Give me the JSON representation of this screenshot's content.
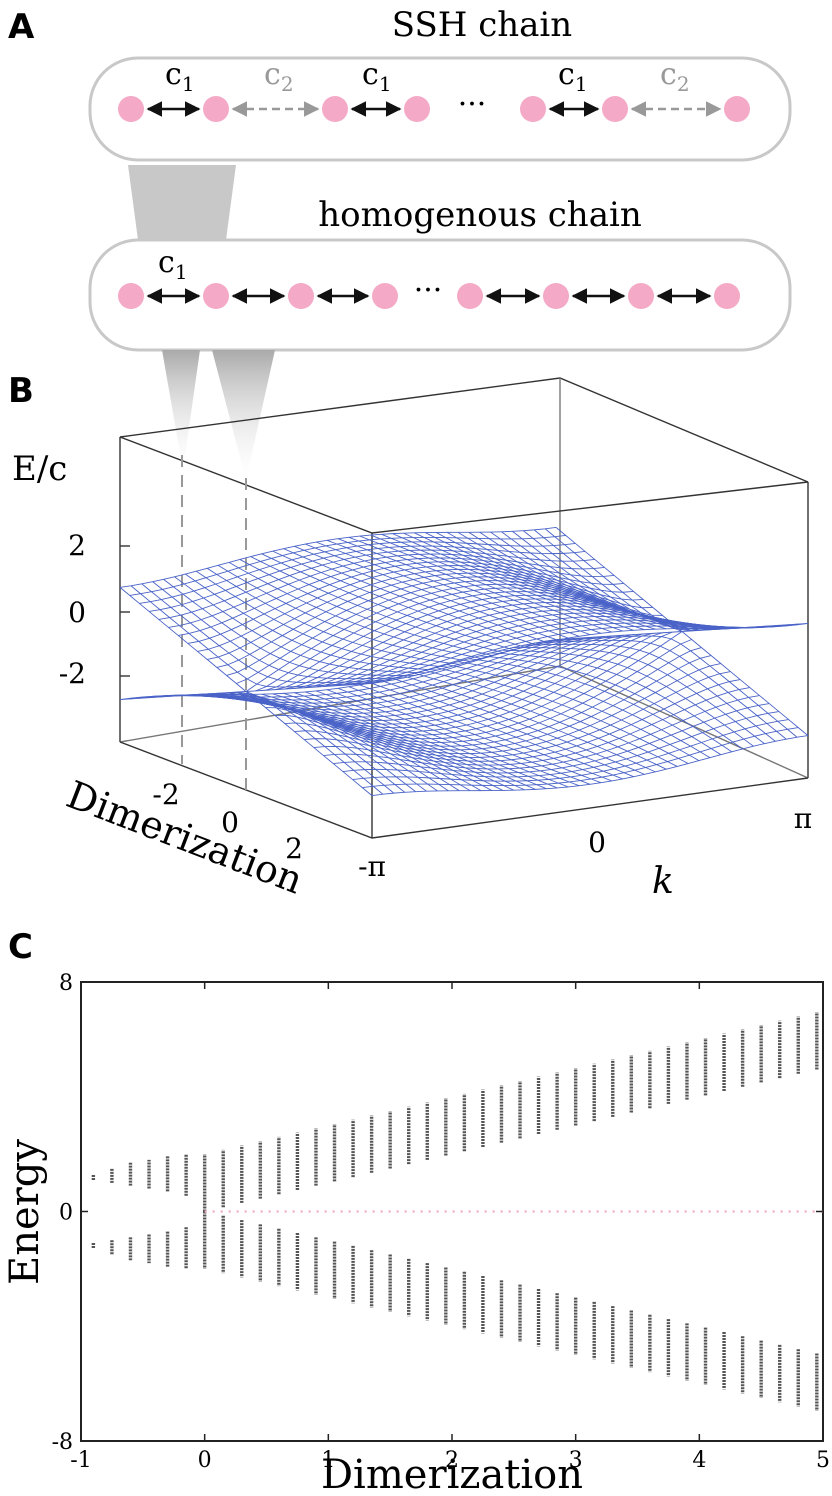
{
  "panel_a": {
    "label": "A",
    "ssh_title": "SSH chain",
    "homo_title": "homogenous chain",
    "c1": "c",
    "c1_sub": "1",
    "c2": "c",
    "c2_sub": "2",
    "ellipsis": "···",
    "colors": {
      "site": "#f4a9c6",
      "strong_bond": "#111111",
      "weak_bond": "#999999"
    }
  },
  "panel_b": {
    "label": "B",
    "z_label": "E/c",
    "z_ticks": [
      "2",
      "0",
      "-2"
    ],
    "dim_ticks": [
      "-2",
      "0",
      "2"
    ],
    "dim_label": "Dimerization",
    "k_ticks": [
      "-π",
      "0",
      "π"
    ],
    "k_label": "k",
    "mesh_color": "#4a63c8"
  },
  "panel_c": {
    "label": "C"
  },
  "chart_data": {
    "type": "scatter",
    "xlabel": "Dimerization",
    "ylabel": "Energy",
    "xlim": [
      -1,
      5
    ],
    "ylim": [
      -8,
      8
    ],
    "x_ticks": [
      "-1",
      "0",
      "1",
      "2",
      "3",
      "4",
      "5"
    ],
    "y_ticks": [
      "8",
      "0",
      "-8"
    ],
    "series": [
      {
        "color": "#555555",
        "note": "bulk bands, vertical point stacks at each dimerization value",
        "x": [
          -0.9,
          -0.75,
          -0.6,
          -0.45,
          -0.3,
          -0.15,
          0.0,
          0.15,
          0.3,
          0.45,
          0.6,
          0.75,
          0.9,
          1.05,
          1.2,
          1.35,
          1.5,
          1.65,
          1.8,
          1.95,
          2.1,
          2.25,
          2.4,
          2.55,
          2.7,
          2.85,
          3.0,
          3.15,
          3.3,
          3.45,
          3.6,
          3.75,
          3.9,
          4.05,
          4.2,
          4.35,
          4.5,
          4.65,
          4.8,
          4.95
        ],
        "band_inner": [
          1.1,
          1.0,
          0.9,
          0.8,
          0.7,
          0.55,
          0.0,
          0.15,
          0.3,
          0.45,
          0.6,
          0.75,
          0.9,
          1.05,
          1.2,
          1.35,
          1.5,
          1.65,
          1.8,
          1.95,
          2.1,
          2.25,
          2.4,
          2.55,
          2.7,
          2.85,
          3.0,
          3.15,
          3.3,
          3.45,
          3.6,
          3.75,
          3.9,
          4.05,
          4.2,
          4.35,
          4.5,
          4.65,
          4.8,
          4.95
        ],
        "band_outer": [
          1.3,
          1.5,
          1.7,
          1.8,
          1.95,
          2.0,
          2.0,
          2.15,
          2.3,
          2.45,
          2.6,
          2.75,
          2.9,
          3.05,
          3.2,
          3.35,
          3.5,
          3.65,
          3.8,
          3.95,
          4.1,
          4.25,
          4.4,
          4.55,
          4.7,
          4.85,
          5.0,
          5.15,
          5.3,
          5.45,
          5.6,
          5.75,
          5.9,
          6.05,
          6.2,
          6.35,
          6.5,
          6.65,
          6.8,
          6.95
        ]
      },
      {
        "color": "#f4a9c6",
        "note": "zero-energy edge states",
        "x_start": 0.0,
        "x_end": 5.0,
        "y": 0
      }
    ]
  }
}
